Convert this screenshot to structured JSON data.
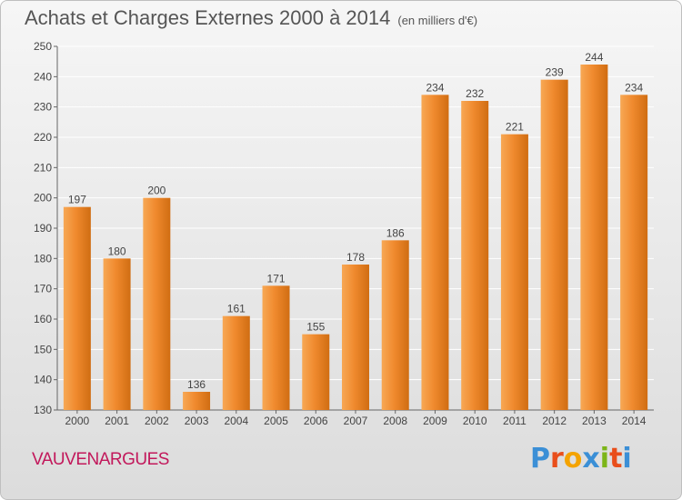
{
  "header": {
    "title": "Achats et Charges Externes 2000 à 2014",
    "unit": "(en milliers d'€)"
  },
  "footer": {
    "commune": "VAUVENARGUES",
    "logo_letters": [
      "P",
      "r",
      "o",
      "x",
      "i",
      "t",
      "i"
    ]
  },
  "colors": {
    "bar": "#f08a2e",
    "bar_light": "#f7a855",
    "bar_dark": "#d06d12",
    "grid": "#ffffff",
    "label": "#444444",
    "commune": "#c2185b",
    "logo": [
      "#3b8fd6",
      "#e94e1b",
      "#f4a300",
      "#3b8fd6",
      "#7cb518",
      "#e94e1b",
      "#3b8fd6"
    ]
  },
  "chart_data": {
    "type": "bar",
    "title": "Achats et Charges Externes 2000 à 2014",
    "subtitle": "(en milliers d'€)",
    "categories": [
      "2000",
      "2001",
      "2002",
      "2003",
      "2004",
      "2005",
      "2006",
      "2007",
      "2008",
      "2009",
      "2010",
      "2011",
      "2012",
      "2013",
      "2014"
    ],
    "values": [
      197,
      180,
      200,
      136,
      161,
      171,
      155,
      178,
      186,
      234,
      232,
      221,
      239,
      244,
      234
    ],
    "ylim": [
      130,
      250
    ],
    "yticks": [
      130,
      140,
      150,
      160,
      170,
      180,
      190,
      200,
      210,
      220,
      230,
      240,
      250
    ],
    "grid": true,
    "data_labels": true
  }
}
